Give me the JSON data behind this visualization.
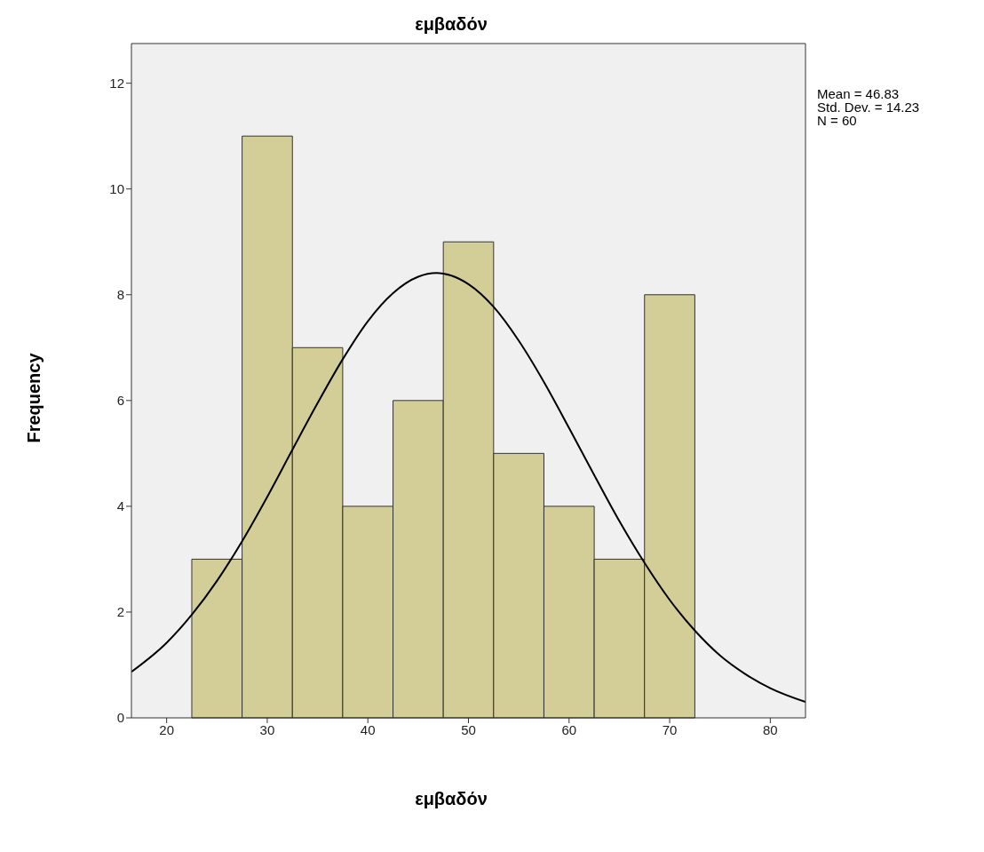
{
  "chart_data": {
    "type": "histogram",
    "title": "εμβαδόν",
    "xlabel": "εμβαδόν",
    "ylabel": "Frequency",
    "bins": [
      22.5,
      27.5,
      32.5,
      37.5,
      42.5,
      47.5,
      52.5,
      57.5,
      62.5,
      67.5,
      72.5
    ],
    "values": [
      3,
      11,
      7,
      4,
      6,
      9,
      5,
      4,
      3,
      8
    ],
    "color": "#d3ce97",
    "series": [
      {
        "type": "line",
        "color": "#000000",
        "x": [
          16.5,
          20,
          22.5,
          25,
          27.5,
          30,
          32.5,
          35,
          37.5,
          40,
          42.5,
          45,
          46.83,
          47.5,
          50,
          52.5,
          55,
          57.5,
          60,
          62.5,
          65,
          67.5,
          70,
          72.5,
          75,
          77.5,
          80,
          83.5
        ],
        "values": [
          0.87,
          1.42,
          1.95,
          2.59,
          3.34,
          4.18,
          5.07,
          5.95,
          6.78,
          7.5,
          8.03,
          8.34,
          8.41,
          8.4,
          8.2,
          7.77,
          7.13,
          6.35,
          5.48,
          4.59,
          3.72,
          2.93,
          2.23,
          1.65,
          1.18,
          0.83,
          0.56,
          0.3
        ]
      }
    ],
    "xlim": [
      16.5,
      83.5
    ],
    "xticks": [
      20,
      30,
      40,
      50,
      60,
      70,
      80
    ],
    "ylim": [
      0,
      12.75
    ],
    "yticks": [
      0,
      2,
      4,
      6,
      8,
      10,
      12
    ],
    "annotations": [
      "Mean = 46.83",
      "Std. Dev. = 14.23",
      "N = 60"
    ]
  }
}
